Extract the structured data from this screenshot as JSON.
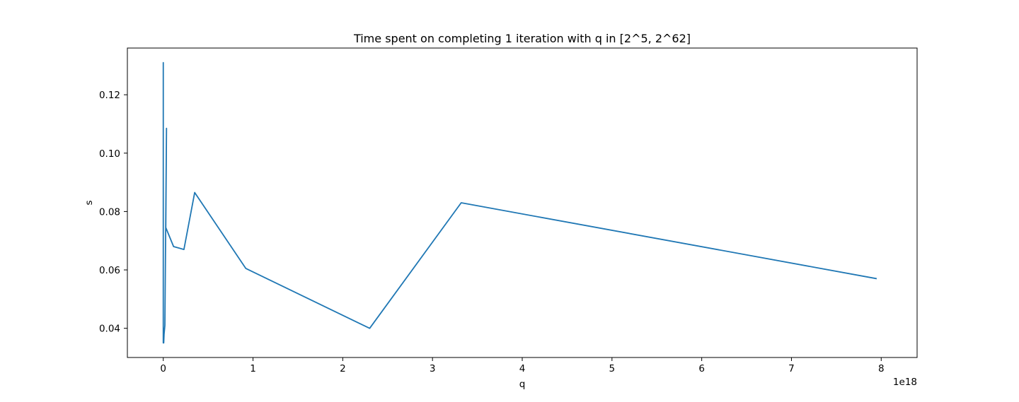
{
  "chart_data": {
    "type": "line",
    "title": "Time spent on completing 1 iteration with q in [2^5, 2^62]",
    "xlabel": "q",
    "ylabel": "s",
    "x_offset_text": "1e18",
    "x_scale_factor": 1e+18,
    "xlim": [
      -0.4,
      8.4
    ],
    "ylim": [
      0.03,
      0.136
    ],
    "x_ticks": [
      0,
      1,
      2,
      3,
      4,
      5,
      6,
      7,
      8
    ],
    "x_tick_labels": [
      "0",
      "1",
      "2",
      "3",
      "4",
      "5",
      "6",
      "7",
      "8"
    ],
    "y_ticks": [
      0.04,
      0.06,
      0.08,
      0.1,
      0.12
    ],
    "y_tick_labels": [
      "0.04",
      "0.06",
      "0.08",
      "0.10",
      "0.12"
    ],
    "grid": false,
    "series": [
      {
        "color": "#1f77b4",
        "x": [
          0.0,
          0.0,
          0.0,
          0.0,
          0.0,
          0.0,
          0.0,
          0.0,
          0.0,
          0.0,
          0.0,
          0.0,
          0.0,
          0.0,
          0.0,
          0.0,
          0.0,
          0.0,
          0.0,
          0.0,
          0.0,
          0.0,
          0.0,
          0.0,
          0.0,
          0.0,
          0.0,
          0.0,
          0.0,
          0.0,
          0.0,
          0.0,
          0.0,
          0.0,
          0.0,
          0.0,
          0.0,
          0.0,
          0.0,
          0.0,
          0.0,
          0.0,
          0.0,
          0.0,
          0.0,
          0.0,
          0.0,
          0.001,
          0.001,
          0.002,
          0.005,
          0.009,
          0.018,
          0.036,
          0.028,
          0.115,
          0.23,
          0.35,
          0.92,
          2.3,
          3.32,
          7.95
        ],
        "y": [
          0.105,
          0.035,
          0.112,
          0.035,
          0.131,
          0.035,
          0.075,
          0.035,
          0.1,
          0.035,
          0.09,
          0.035,
          0.08,
          0.035,
          0.07,
          0.035,
          0.085,
          0.035,
          0.06,
          0.035,
          0.095,
          0.035,
          0.07,
          0.035,
          0.08,
          0.035,
          0.065,
          0.035,
          0.09,
          0.035,
          0.075,
          0.035,
          0.085,
          0.035,
          0.06,
          0.035,
          0.07,
          0.035,
          0.08,
          0.035,
          0.05,
          0.035,
          0.075,
          0.035,
          0.065,
          0.035,
          0.045,
          0.035,
          0.04,
          0.036,
          0.035,
          0.038,
          0.041,
          0.1085,
          0.0745,
          0.068,
          0.067,
          0.0865,
          0.0605,
          0.04,
          0.083,
          0.057
        ]
      }
    ]
  }
}
